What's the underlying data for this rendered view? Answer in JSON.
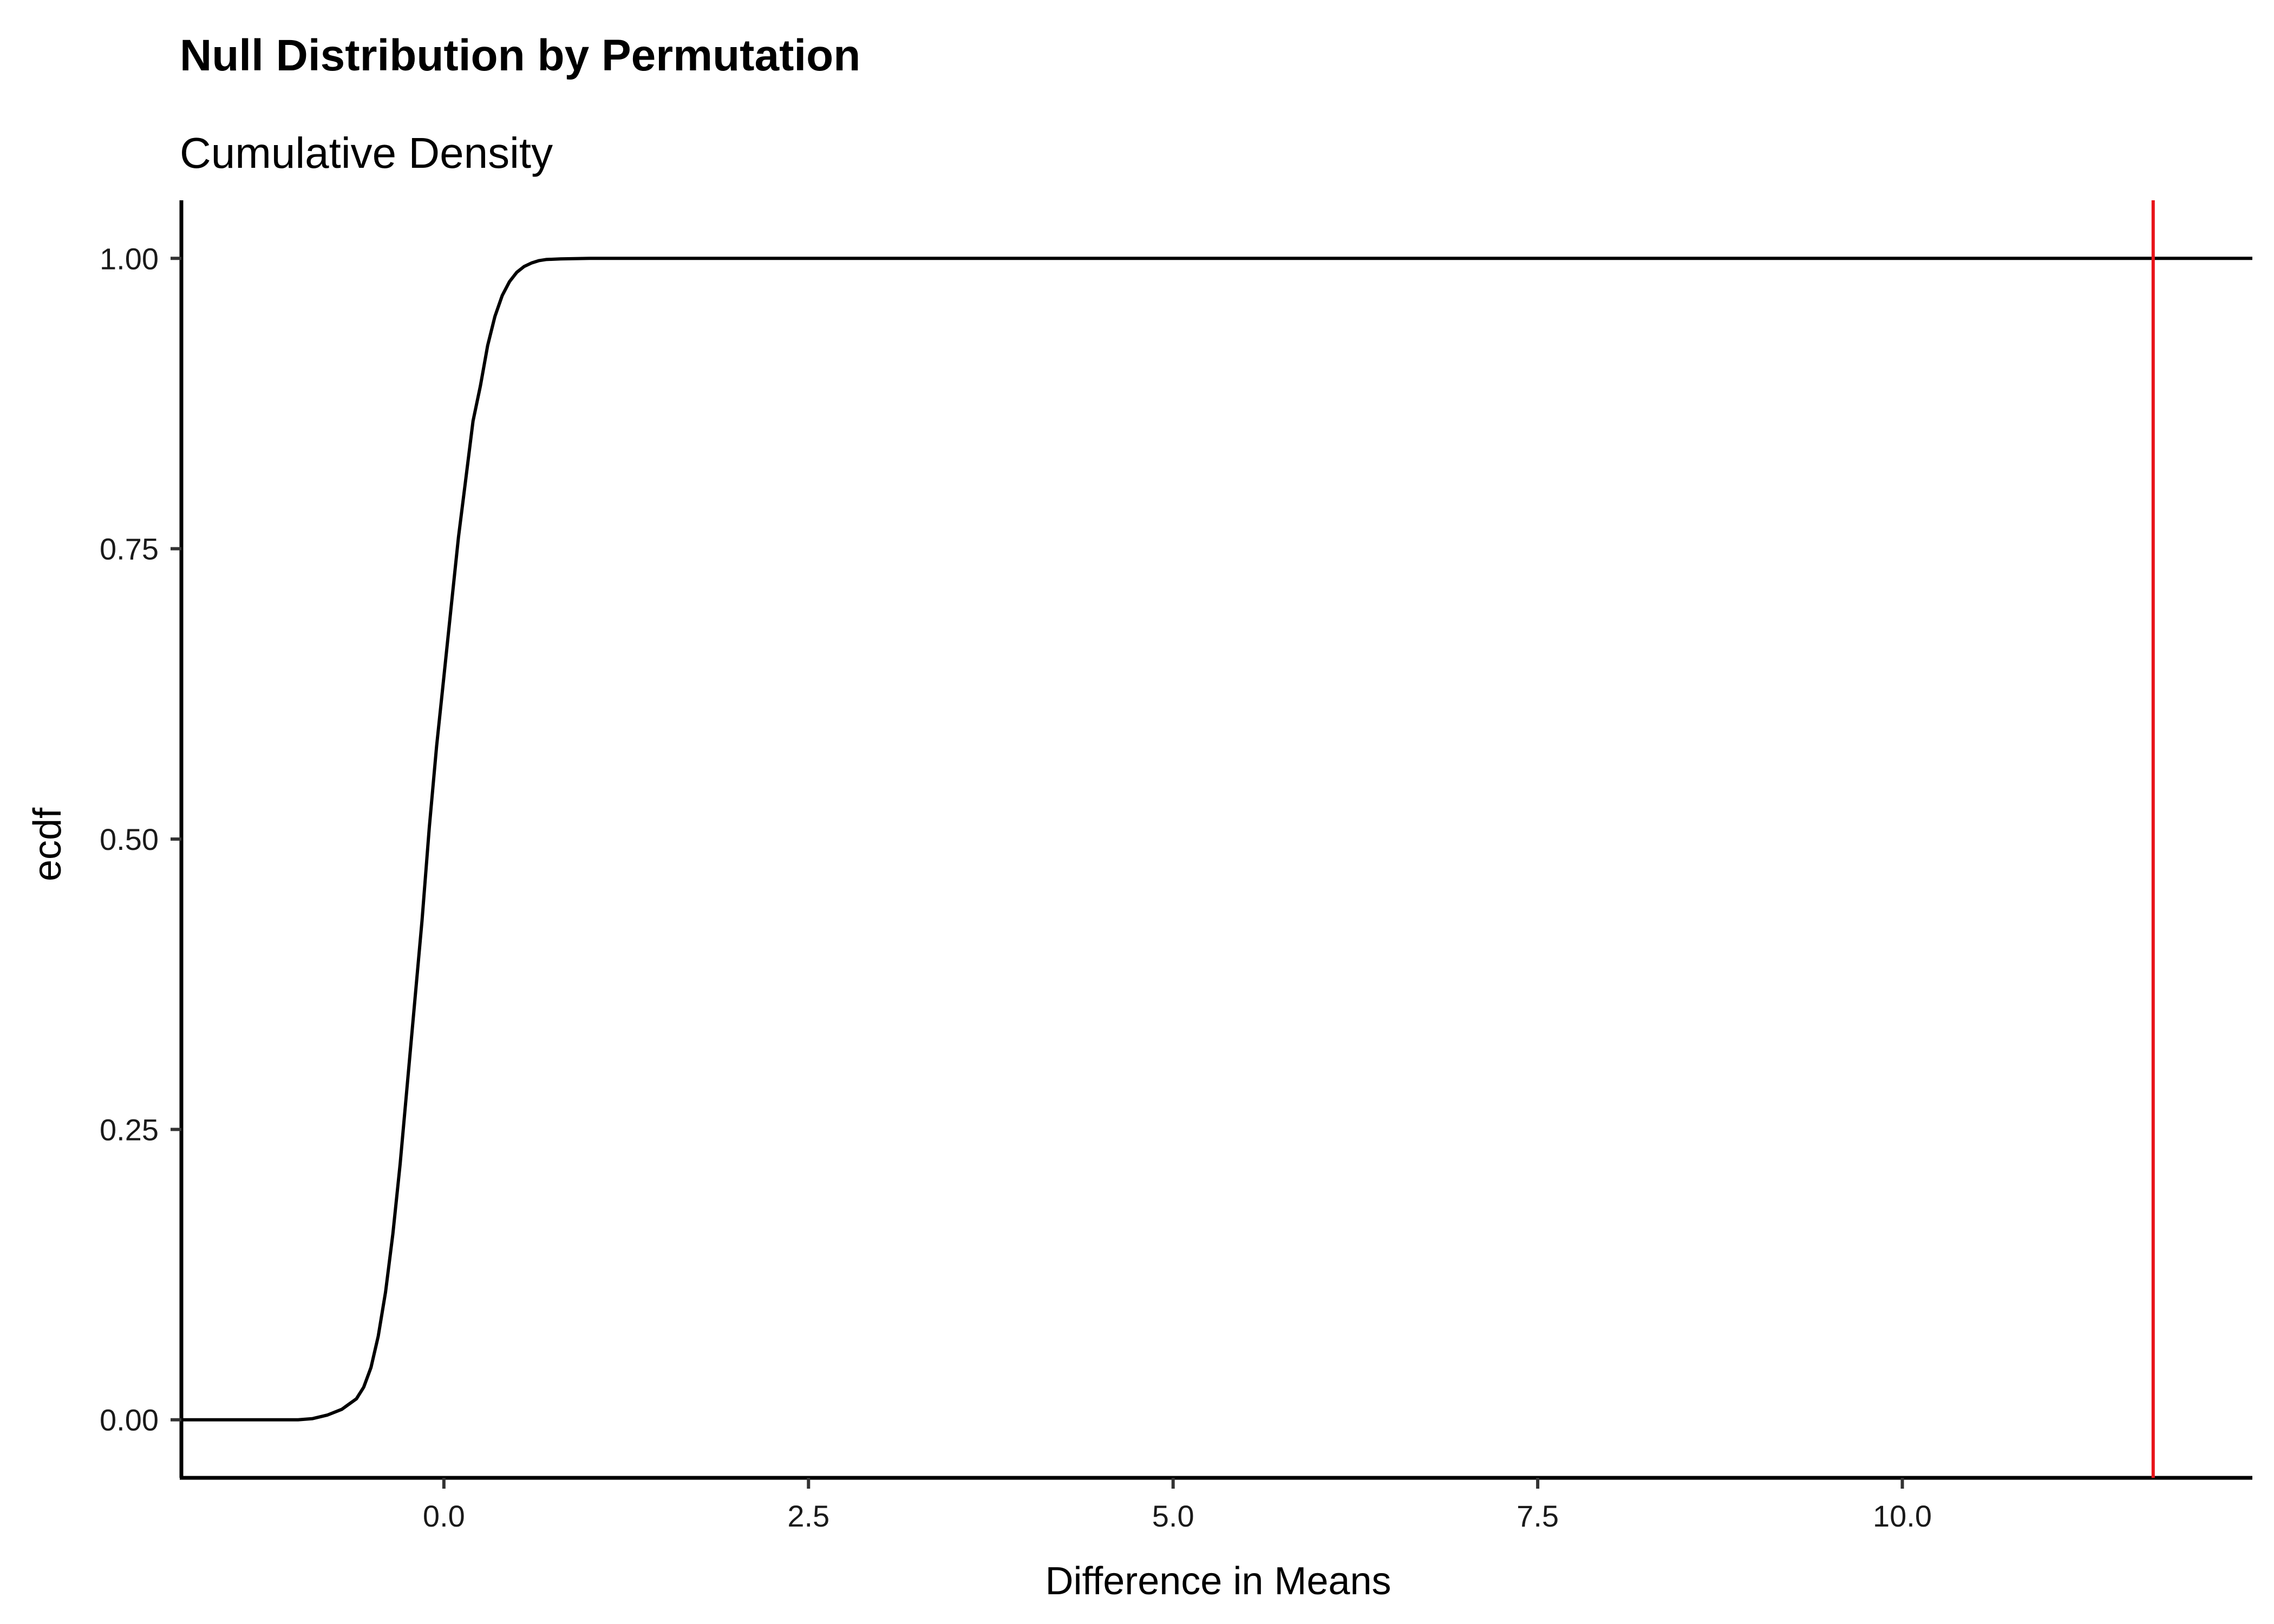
{
  "chart_data": {
    "type": "line",
    "title": "Null Distribution by Permutation",
    "subtitle": "Cumulative Density",
    "xlabel": "Difference in Means",
    "ylabel": "ecdf",
    "xlim": [
      -1.8,
      12.4
    ],
    "ylim": [
      -0.05,
      1.05
    ],
    "x_ticks": [
      0.0,
      2.5,
      5.0,
      7.5,
      10.0
    ],
    "x_tick_labels": [
      "0.0",
      "2.5",
      "5.0",
      "7.5",
      "10.0"
    ],
    "y_ticks": [
      0.0,
      0.25,
      0.5,
      0.75,
      1.0
    ],
    "y_tick_labels": [
      "0.00",
      "0.25",
      "0.50",
      "0.75",
      "1.00"
    ],
    "grid": false,
    "series": [
      {
        "color": "#000000",
        "x": [
          -1.8,
          -1.2,
          -1.0,
          -0.9,
          -0.8,
          -0.7,
          -0.6,
          -0.55,
          -0.5,
          -0.45,
          -0.4,
          -0.35,
          -0.3,
          -0.25,
          -0.2,
          -0.15,
          -0.1,
          -0.05,
          0.0,
          0.05,
          0.1,
          0.15,
          0.2,
          0.25,
          0.3,
          0.35,
          0.4,
          0.45,
          0.5,
          0.55,
          0.6,
          0.65,
          0.7,
          0.8,
          0.9,
          1.0,
          1.2,
          12.4
        ],
        "y": [
          0.0,
          0.0,
          0.0,
          0.001,
          0.004,
          0.009,
          0.018,
          0.028,
          0.045,
          0.072,
          0.11,
          0.16,
          0.22,
          0.29,
          0.36,
          0.43,
          0.51,
          0.58,
          0.64,
          0.7,
          0.76,
          0.81,
          0.86,
          0.89,
          0.925,
          0.95,
          0.968,
          0.98,
          0.988,
          0.993,
          0.996,
          0.998,
          0.999,
          0.9995,
          0.9998,
          1.0,
          1.0,
          1.0
        ]
      }
    ],
    "vline": {
      "x": 11.72,
      "color": "#e8141a"
    }
  }
}
